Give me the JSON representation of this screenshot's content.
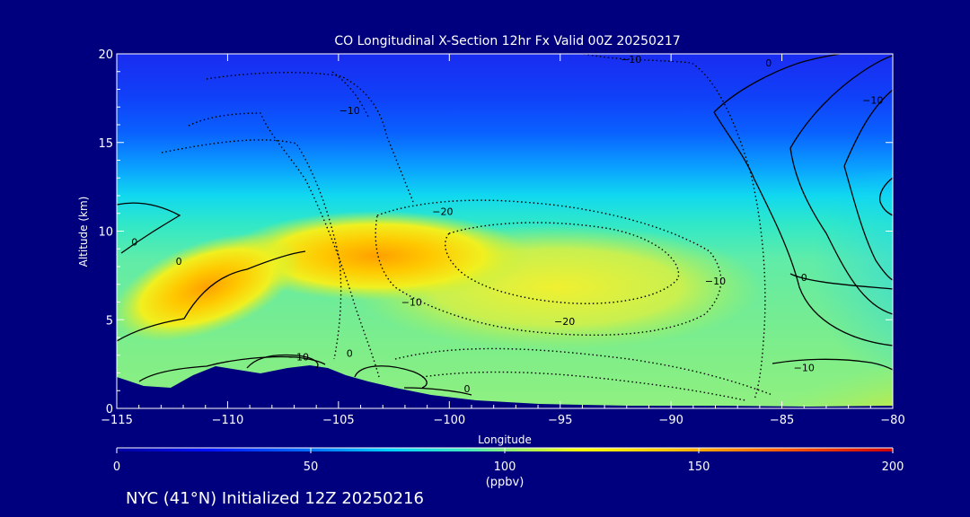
{
  "colors": {
    "background": "#00007f",
    "terrain": "#00007f",
    "text": "#ffffff",
    "contour": "#000000"
  },
  "footer": {
    "text": "NYC (41°N) Initialized 12Z 20250216"
  },
  "chart_data": {
    "type": "heatmap",
    "title": "CO Longitudinal X-Section 12hr  Fx Valid 00Z 20250217",
    "xlabel": "Longitude",
    "ylabel": "Altitude (km)",
    "xlim": [
      -115,
      -80
    ],
    "ylim": [
      0,
      20
    ],
    "x_ticks": [
      -115,
      -110,
      -105,
      -100,
      -95,
      -90,
      -85,
      -80
    ],
    "x_tick_labels": [
      "−115",
      "−110",
      "−105",
      "−100",
      "−95",
      "−90",
      "−85",
      "−80"
    ],
    "y_ticks": [
      0,
      5,
      10,
      15,
      20
    ],
    "y_tick_labels": [
      "0",
      "5",
      "10",
      "15",
      "20"
    ],
    "colorbar": {
      "label": "(ppbv)",
      "range": [
        0,
        200
      ],
      "ticks": [
        0,
        50,
        100,
        150,
        200
      ],
      "tick_labels": [
        "0",
        "50",
        "100",
        "150",
        "200"
      ]
    },
    "contour_labels": [
      {
        "text": "−10",
        "lon": -104.5,
        "alt": 16.6
      },
      {
        "text": "−10",
        "lon": -91.8,
        "alt": 19.5
      },
      {
        "text": "−20",
        "lon": -100.3,
        "alt": 10.9
      },
      {
        "text": "−20",
        "lon": -94.8,
        "alt": 4.7
      },
      {
        "text": "−10",
        "lon": -101.7,
        "alt": 5.8
      },
      {
        "text": "−10",
        "lon": -88.0,
        "alt": 7.0
      },
      {
        "text": "−10",
        "lon": -84.0,
        "alt": 2.1
      },
      {
        "text": "−10",
        "lon": -106.8,
        "alt": 2.7
      },
      {
        "text": "0",
        "lon": -114.2,
        "alt": 9.2
      },
      {
        "text": "0",
        "lon": -112.2,
        "alt": 8.1
      },
      {
        "text": "0",
        "lon": -104.5,
        "alt": 2.9
      },
      {
        "text": "0",
        "lon": -99.2,
        "alt": 0.9
      },
      {
        "text": "0",
        "lon": -84.0,
        "alt": 7.2
      },
      {
        "text": "0",
        "lon": -85.6,
        "alt": 19.3
      },
      {
        "text": "−10",
        "lon": -80.9,
        "alt": 17.2
      }
    ]
  }
}
